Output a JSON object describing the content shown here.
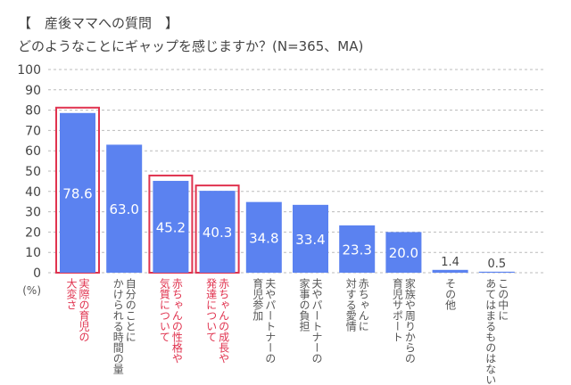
{
  "title_line1": "【　産後ママへの質問　】",
  "title_line2": "どのようなことにギャップを感じますか？(N=365、MA)",
  "chart_data": {
    "type": "bar",
    "ylabel": "(%)",
    "ylim": [
      0,
      100
    ],
    "yticks": [
      0,
      10,
      20,
      30,
      40,
      50,
      60,
      70,
      80,
      90,
      100
    ],
    "grid": true,
    "categories": [
      "実際の育児の\n大変さ",
      "自分のことに\nかけられる時間の量",
      "赤ちゃんの性格や\n気質について",
      "赤ちゃんの成長や\n発達について",
      "夫やパートナーの\n育児参加",
      "夫やパートナーの\n家事の負担",
      "赤ちゃんに\n対する愛情",
      "家族や周りからの\n育児サポート",
      "その他",
      "この中に\nあてはまるものはない"
    ],
    "values": [
      78.6,
      63.0,
      45.2,
      40.3,
      34.8,
      33.4,
      23.3,
      20.0,
      1.4,
      0.5
    ],
    "labels": [
      "78.6",
      "63.0",
      "45.2",
      "40.3",
      "34.8",
      "33.4",
      "23.3",
      "20.0",
      "1.4",
      "0.5"
    ],
    "highlighted": [
      0,
      2,
      3
    ],
    "colors": {
      "bar": "#5b82f0",
      "highlight": "#e0334f",
      "grid": "#bbbbbb"
    }
  }
}
